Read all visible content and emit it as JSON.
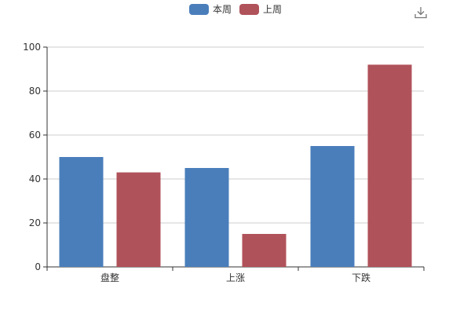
{
  "toolbar": {
    "download_icon": "download-icon"
  },
  "colors": {
    "series1": "#4a7ebb",
    "series2": "#b0525a",
    "axis": "#333333",
    "grid": "#cccccc"
  },
  "chart_data": {
    "type": "bar",
    "categories": [
      "盘整",
      "上涨",
      "下跌"
    ],
    "series": [
      {
        "name": "本周",
        "values": [
          50,
          45,
          55
        ]
      },
      {
        "name": "上周",
        "values": [
          43,
          15,
          92
        ]
      }
    ],
    "ylim": [
      0,
      100
    ],
    "yticks": [
      0,
      20,
      40,
      60,
      80,
      100
    ],
    "grid": true,
    "legend": "top-center"
  }
}
